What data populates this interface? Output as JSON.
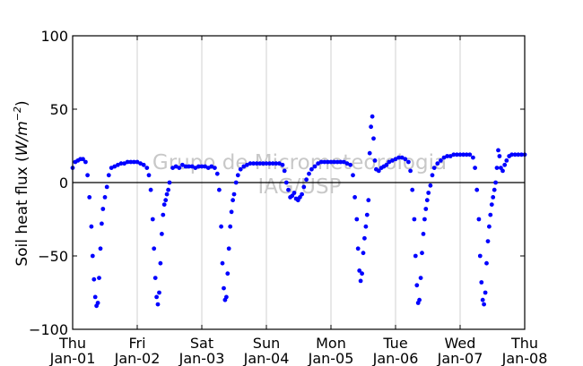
{
  "chart_data": {
    "type": "scatter",
    "title": "",
    "xlabel": "",
    "ylabel": "Soil heat flux (W/m⁻²)",
    "ylabel_main": "Soil heat flux (",
    "ylabel_unit": "W/m",
    "ylabel_exp": "−2",
    "ylabel_close": ")",
    "ylim": [
      -100,
      100
    ],
    "xlim": [
      0,
      7
    ],
    "yticks": [
      -100,
      -50,
      0,
      50,
      100
    ],
    "xticks": [
      {
        "x": 0,
        "day": "Thu",
        "date": "Jan-01"
      },
      {
        "x": 1,
        "day": "Fri",
        "date": "Jan-02"
      },
      {
        "x": 2,
        "day": "Sat",
        "date": "Jan-03"
      },
      {
        "x": 3,
        "day": "Sun",
        "date": "Jan-04"
      },
      {
        "x": 4,
        "day": "Mon",
        "date": "Jan-05"
      },
      {
        "x": 5,
        "day": "Tue",
        "date": "Jan-06"
      },
      {
        "x": 6,
        "day": "Wed",
        "date": "Jan-07"
      },
      {
        "x": 7,
        "day": "Thu",
        "date": "Jan-08"
      }
    ],
    "vgrid": true,
    "zero_line": true,
    "marker_color": "#0000ff",
    "watermark": [
      "Grupo de Micrometeorologia",
      "IAG/USP"
    ],
    "series": [
      {
        "name": "",
        "points": [
          [
            0.0,
            10
          ],
          [
            0.04,
            14
          ],
          [
            0.08,
            15
          ],
          [
            0.12,
            16
          ],
          [
            0.16,
            16
          ],
          [
            0.2,
            14
          ],
          [
            0.23,
            5
          ],
          [
            0.26,
            -10
          ],
          [
            0.29,
            -30
          ],
          [
            0.31,
            -50
          ],
          [
            0.33,
            -66
          ],
          [
            0.35,
            -78
          ],
          [
            0.37,
            -84
          ],
          [
            0.39,
            -82
          ],
          [
            0.41,
            -65
          ],
          [
            0.43,
            -45
          ],
          [
            0.45,
            -28
          ],
          [
            0.47,
            -18
          ],
          [
            0.5,
            -10
          ],
          [
            0.53,
            -3
          ],
          [
            0.56,
            5
          ],
          [
            0.6,
            10
          ],
          [
            0.65,
            11
          ],
          [
            0.7,
            12
          ],
          [
            0.75,
            13
          ],
          [
            0.8,
            13
          ],
          [
            0.85,
            14
          ],
          [
            0.9,
            14
          ],
          [
            0.95,
            14
          ],
          [
            1.0,
            14
          ],
          [
            1.05,
            13
          ],
          [
            1.1,
            12
          ],
          [
            1.15,
            10
          ],
          [
            1.18,
            5
          ],
          [
            1.21,
            -5
          ],
          [
            1.24,
            -25
          ],
          [
            1.26,
            -45
          ],
          [
            1.28,
            -65
          ],
          [
            1.3,
            -78
          ],
          [
            1.32,
            -83
          ],
          [
            1.34,
            -75
          ],
          [
            1.36,
            -55
          ],
          [
            1.38,
            -35
          ],
          [
            1.4,
            -22
          ],
          [
            1.42,
            -15
          ],
          [
            1.44,
            -12
          ],
          [
            1.46,
            -8
          ],
          [
            1.48,
            -5
          ],
          [
            1.5,
            0
          ],
          [
            1.55,
            10
          ],
          [
            1.6,
            11
          ],
          [
            1.65,
            10
          ],
          [
            1.7,
            12
          ],
          [
            1.75,
            11
          ],
          [
            1.8,
            11
          ],
          [
            1.85,
            11
          ],
          [
            1.9,
            10
          ],
          [
            1.95,
            11
          ],
          [
            2.0,
            11
          ],
          [
            2.05,
            11
          ],
          [
            2.1,
            10
          ],
          [
            2.15,
            11
          ],
          [
            2.2,
            10
          ],
          [
            2.24,
            6
          ],
          [
            2.27,
            -5
          ],
          [
            2.3,
            -30
          ],
          [
            2.32,
            -55
          ],
          [
            2.34,
            -72
          ],
          [
            2.36,
            -80
          ],
          [
            2.38,
            -78
          ],
          [
            2.4,
            -62
          ],
          [
            2.42,
            -45
          ],
          [
            2.44,
            -30
          ],
          [
            2.46,
            -20
          ],
          [
            2.48,
            -12
          ],
          [
            2.5,
            -8
          ],
          [
            2.53,
            0
          ],
          [
            2.56,
            5
          ],
          [
            2.6,
            9
          ],
          [
            2.65,
            11
          ],
          [
            2.7,
            12
          ],
          [
            2.75,
            13
          ],
          [
            2.8,
            13
          ],
          [
            2.85,
            13
          ],
          [
            2.9,
            13
          ],
          [
            2.95,
            13
          ],
          [
            3.0,
            13
          ],
          [
            3.05,
            13
          ],
          [
            3.1,
            13
          ],
          [
            3.15,
            13
          ],
          [
            3.2,
            13
          ],
          [
            3.25,
            12
          ],
          [
            3.28,
            8
          ],
          [
            3.31,
            0
          ],
          [
            3.34,
            -5
          ],
          [
            3.37,
            -10
          ],
          [
            3.4,
            -9
          ],
          [
            3.43,
            -7
          ],
          [
            3.46,
            -11
          ],
          [
            3.49,
            -12
          ],
          [
            3.52,
            -10
          ],
          [
            3.55,
            -8
          ],
          [
            3.58,
            -3
          ],
          [
            3.62,
            2
          ],
          [
            3.66,
            6
          ],
          [
            3.7,
            9
          ],
          [
            3.75,
            11
          ],
          [
            3.8,
            13
          ],
          [
            3.85,
            14
          ],
          [
            3.9,
            14
          ],
          [
            3.95,
            14
          ],
          [
            4.0,
            14
          ],
          [
            4.05,
            14
          ],
          [
            4.1,
            14
          ],
          [
            4.15,
            14
          ],
          [
            4.2,
            14
          ],
          [
            4.25,
            13
          ],
          [
            4.3,
            12
          ],
          [
            4.34,
            5
          ],
          [
            4.37,
            -10
          ],
          [
            4.4,
            -25
          ],
          [
            4.42,
            -45
          ],
          [
            4.44,
            -60
          ],
          [
            4.46,
            -67
          ],
          [
            4.48,
            -62
          ],
          [
            4.5,
            -48
          ],
          [
            4.52,
            -38
          ],
          [
            4.54,
            -30
          ],
          [
            4.56,
            -22
          ],
          [
            4.58,
            -12
          ],
          [
            4.6,
            20
          ],
          [
            4.62,
            38
          ],
          [
            4.64,
            45
          ],
          [
            4.66,
            30
          ],
          [
            4.68,
            15
          ],
          [
            4.7,
            9
          ],
          [
            4.74,
            8
          ],
          [
            4.78,
            10
          ],
          [
            4.82,
            11
          ],
          [
            4.86,
            12
          ],
          [
            4.9,
            14
          ],
          [
            4.95,
            15
          ],
          [
            5.0,
            16
          ],
          [
            5.05,
            17
          ],
          [
            5.1,
            17
          ],
          [
            5.15,
            16
          ],
          [
            5.2,
            14
          ],
          [
            5.23,
            8
          ],
          [
            5.26,
            -5
          ],
          [
            5.29,
            -25
          ],
          [
            5.31,
            -50
          ],
          [
            5.33,
            -70
          ],
          [
            5.35,
            -82
          ],
          [
            5.37,
            -80
          ],
          [
            5.39,
            -65
          ],
          [
            5.41,
            -48
          ],
          [
            5.43,
            -35
          ],
          [
            5.45,
            -25
          ],
          [
            5.47,
            -18
          ],
          [
            5.49,
            -12
          ],
          [
            5.51,
            -7
          ],
          [
            5.54,
            -2
          ],
          [
            5.57,
            5
          ],
          [
            5.6,
            10
          ],
          [
            5.65,
            13
          ],
          [
            5.7,
            15
          ],
          [
            5.75,
            17
          ],
          [
            5.8,
            18
          ],
          [
            5.85,
            18
          ],
          [
            5.9,
            19
          ],
          [
            5.95,
            19
          ],
          [
            6.0,
            19
          ],
          [
            6.05,
            19
          ],
          [
            6.1,
            19
          ],
          [
            6.15,
            19
          ],
          [
            6.2,
            17
          ],
          [
            6.23,
            10
          ],
          [
            6.26,
            -5
          ],
          [
            6.29,
            -25
          ],
          [
            6.31,
            -50
          ],
          [
            6.33,
            -68
          ],
          [
            6.35,
            -80
          ],
          [
            6.37,
            -83
          ],
          [
            6.39,
            -75
          ],
          [
            6.41,
            -55
          ],
          [
            6.43,
            -40
          ],
          [
            6.45,
            -30
          ],
          [
            6.47,
            -22
          ],
          [
            6.49,
            -15
          ],
          [
            6.51,
            -10
          ],
          [
            6.53,
            -5
          ],
          [
            6.55,
            0
          ],
          [
            6.57,
            10
          ],
          [
            6.59,
            22
          ],
          [
            6.61,
            18
          ],
          [
            6.63,
            10
          ],
          [
            6.66,
            8
          ],
          [
            6.69,
            12
          ],
          [
            6.72,
            15
          ],
          [
            6.76,
            18
          ],
          [
            6.8,
            19
          ],
          [
            6.85,
            19
          ],
          [
            6.9,
            19
          ],
          [
            6.95,
            19
          ],
          [
            7.0,
            19
          ]
        ]
      }
    ]
  }
}
